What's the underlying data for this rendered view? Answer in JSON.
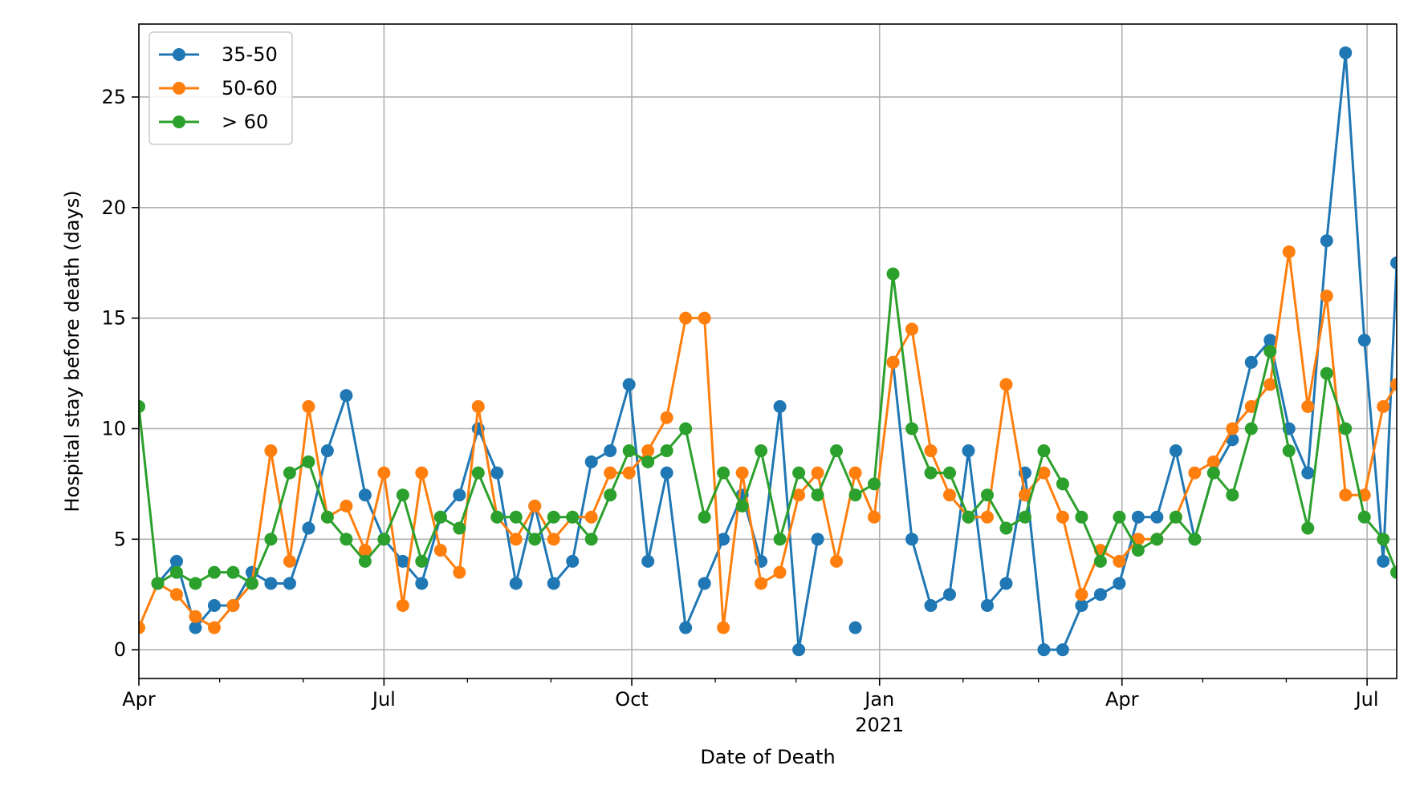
{
  "chart_data": {
    "type": "line",
    "xlabel": "Date of Death",
    "ylabel": "Hospital stay before death (days)",
    "x_start": "2020-04-01",
    "x_end": "2021-07-12",
    "ylim": [
      -1.3,
      28.3
    ],
    "grid": true,
    "legend_position": "upper left",
    "x_major_ticks": [
      {
        "date": "2020-04-01",
        "label": "Apr",
        "sublabel": ""
      },
      {
        "date": "2020-07-01",
        "label": "Jul",
        "sublabel": ""
      },
      {
        "date": "2020-10-01",
        "label": "Oct",
        "sublabel": ""
      },
      {
        "date": "2021-01-01",
        "label": "Jan",
        "sublabel": "2021"
      },
      {
        "date": "2021-04-01",
        "label": "Apr",
        "sublabel": ""
      },
      {
        "date": "2021-07-01",
        "label": "Jul",
        "sublabel": ""
      }
    ],
    "x_minor_ticks": [
      "2020-05-01",
      "2020-06-01",
      "2020-08-01",
      "2020-09-01",
      "2020-11-01",
      "2020-12-01",
      "2021-02-01",
      "2021-03-01",
      "2021-05-01",
      "2021-06-01"
    ],
    "y_ticks": [
      0,
      5,
      10,
      15,
      20,
      25
    ],
    "x": [
      "2020-04-01",
      "2020-04-08",
      "2020-04-15",
      "2020-04-22",
      "2020-04-29",
      "2020-05-06",
      "2020-05-13",
      "2020-05-20",
      "2020-05-27",
      "2020-06-03",
      "2020-06-10",
      "2020-06-17",
      "2020-06-24",
      "2020-07-01",
      "2020-07-08",
      "2020-07-15",
      "2020-07-22",
      "2020-07-29",
      "2020-08-05",
      "2020-08-12",
      "2020-08-19",
      "2020-08-26",
      "2020-09-02",
      "2020-09-09",
      "2020-09-16",
      "2020-09-23",
      "2020-09-30",
      "2020-10-07",
      "2020-10-14",
      "2020-10-21",
      "2020-10-28",
      "2020-11-04",
      "2020-11-11",
      "2020-11-18",
      "2020-11-25",
      "2020-12-02",
      "2020-12-09",
      "2020-12-16",
      "2020-12-23",
      "2020-12-30",
      "2021-01-06",
      "2021-01-13",
      "2021-01-20",
      "2021-01-27",
      "2021-02-03",
      "2021-02-10",
      "2021-02-17",
      "2021-02-24",
      "2021-03-03",
      "2021-03-10",
      "2021-03-17",
      "2021-03-24",
      "2021-03-31",
      "2021-04-07",
      "2021-04-14",
      "2021-04-21",
      "2021-04-28",
      "2021-05-05",
      "2021-05-12",
      "2021-05-19",
      "2021-05-26",
      "2021-06-02",
      "2021-06-09",
      "2021-06-16",
      "2021-06-23",
      "2021-06-30",
      "2021-07-07",
      "2021-07-12"
    ],
    "series": [
      {
        "name": "35-50",
        "color": "#1f77b4",
        "values": [
          null,
          3,
          4,
          1,
          2,
          2,
          3.5,
          3,
          3,
          5.5,
          9,
          11.5,
          7,
          5,
          4,
          3,
          6,
          7,
          10,
          8,
          3,
          6.5,
          3,
          4,
          8.5,
          9,
          12,
          4,
          8,
          1,
          3,
          5,
          7,
          4,
          11,
          0,
          5,
          null,
          1,
          null,
          13,
          5,
          2,
          2.5,
          9,
          2,
          3,
          8,
          0,
          0,
          2,
          2.5,
          3,
          6,
          6,
          9,
          5,
          8,
          9.5,
          13,
          14,
          10,
          8,
          18.5,
          27,
          14,
          4,
          17.5
        ]
      },
      {
        "name": "50-60",
        "color": "#ff7f0e",
        "values": [
          1,
          3,
          2.5,
          1.5,
          1,
          2,
          3,
          9,
          4,
          11,
          6,
          6.5,
          4.5,
          8,
          2,
          8,
          4.5,
          3.5,
          11,
          6,
          5,
          6.5,
          5,
          6,
          6,
          8,
          8,
          9,
          10.5,
          15,
          15,
          1,
          8,
          3,
          3.5,
          7,
          8,
          4,
          8,
          6,
          13,
          14.5,
          9,
          7,
          6,
          6,
          12,
          7,
          8,
          6,
          2.5,
          4.5,
          4,
          5,
          5,
          6,
          8,
          8.5,
          10,
          11,
          12,
          18,
          11,
          16,
          7,
          7,
          11,
          12
        ]
      },
      {
        "name": "> 60",
        "color": "#2ca02c",
        "values": [
          11,
          3,
          3.5,
          3,
          3.5,
          3.5,
          3,
          5,
          8,
          8.5,
          6,
          5,
          4,
          5,
          7,
          4,
          6,
          5.5,
          8,
          6,
          6,
          5,
          6,
          6,
          5,
          7,
          9,
          8.5,
          9,
          10,
          6,
          8,
          6.5,
          9,
          5,
          8,
          7,
          9,
          7,
          7.5,
          17,
          10,
          8,
          8,
          6,
          7,
          5.5,
          6,
          9,
          7.5,
          6,
          4,
          6,
          4.5,
          5,
          6,
          5,
          8,
          7,
          10,
          13.5,
          9,
          5.5,
          12.5,
          10,
          6,
          5,
          3.5
        ]
      }
    ]
  }
}
